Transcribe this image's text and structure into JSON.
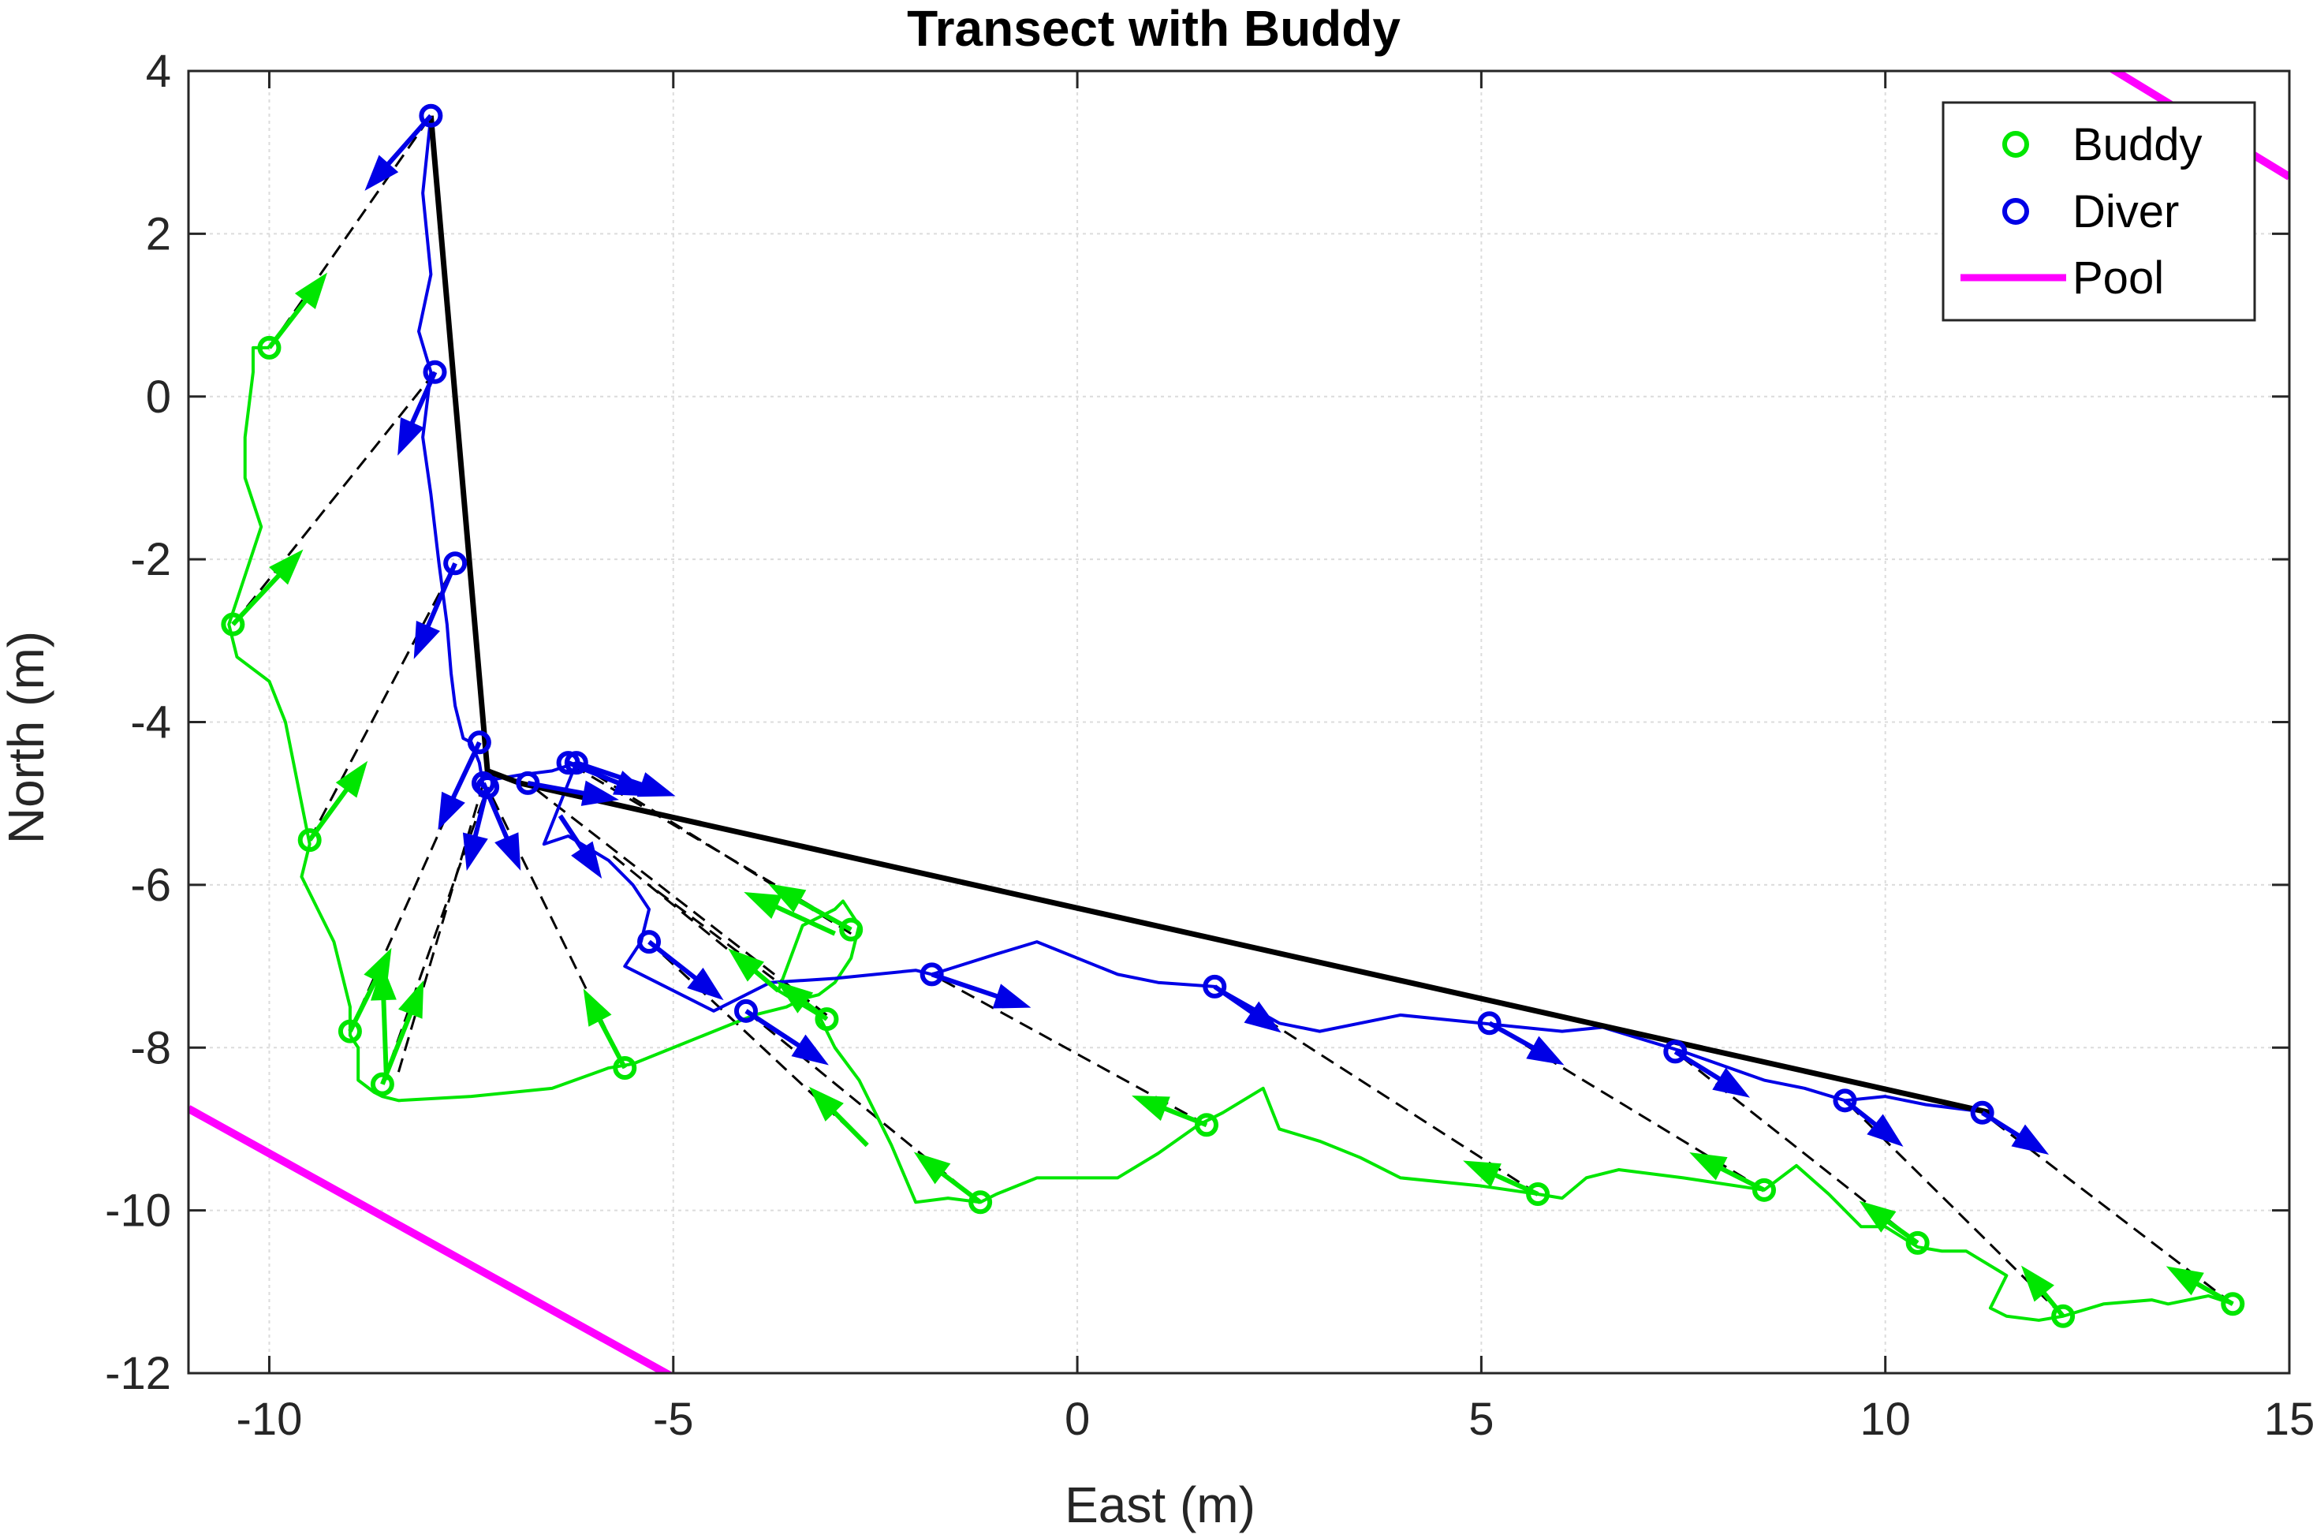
{
  "chart_data": {
    "type": "line",
    "title": "Transect with Buddy",
    "xlabel": "East (m)",
    "ylabel": "North (m)",
    "xlim": [
      -11,
      15
    ],
    "ylim": [
      -12,
      4
    ],
    "xticks": [
      -10,
      -5,
      0,
      5,
      10,
      15
    ],
    "yticks": [
      4,
      2,
      0,
      -2,
      -4,
      -6,
      -8,
      -10,
      -12
    ],
    "xtick_labels": [
      "-10",
      "-5",
      "0",
      "5",
      "10",
      "15"
    ],
    "ytick_labels": [
      "4",
      "2",
      "0",
      "-2",
      "-4",
      "-6",
      "-8",
      "-10",
      "-12"
    ],
    "grid": true,
    "legend_position": "top-right",
    "legend": [
      {
        "name": "Buddy",
        "color": "#00e600",
        "style": "circle-marker"
      },
      {
        "name": "Diver",
        "color": "#0000e6",
        "style": "circle-marker"
      },
      {
        "name": "Pool",
        "color": "#ff00ff",
        "style": "line"
      }
    ],
    "series": [
      {
        "name": "Pool",
        "color": "#ff00ff",
        "segments": [
          [
            [
              -11,
              -8.75
            ],
            [
              -5,
              -12.05
            ]
          ],
          [
            [
              12.6,
              4.15
            ],
            [
              15,
              2.7
            ]
          ]
        ]
      },
      {
        "name": "Buddy",
        "color": "#00e600",
        "x": [
          -10.0,
          -10.2,
          -10.2,
          -10.3,
          -10.3,
          -10.1,
          -10.3,
          -10.5,
          -10.4,
          -10.0,
          -9.8,
          -9.7,
          -9.6,
          -9.5,
          -9.6,
          -9.4,
          -9.2,
          -9.1,
          -9.0,
          -9.0,
          -8.9,
          -8.9,
          -8.7,
          -8.6,
          -8.4,
          -7.5,
          -6.5,
          -5.8,
          -5.5,
          -5.0,
          -4.5,
          -4.0,
          -3.6,
          -3.4,
          -3.2,
          -3.0,
          -2.8,
          -2.7,
          -2.9,
          -3.0,
          -3.4,
          -3.7,
          -3.2,
          -3.0,
          -2.7,
          -2.5,
          -2.3,
          -2.0,
          -1.6,
          -1.2,
          -1.0,
          -0.5,
          0.5,
          1.0,
          1.5,
          1.8,
          2.3,
          2.5,
          3.0,
          3.5,
          4.0,
          5.0,
          5.7,
          6.0,
          6.3,
          6.7,
          7.5,
          8.5,
          8.9,
          9.3,
          9.7,
          10.0,
          10.4,
          10.7,
          11.0,
          11.5,
          11.3,
          11.5,
          11.9,
          12.2,
          12.7,
          13.3,
          13.5,
          14.0,
          14.3
        ],
        "y": [
          0.6,
          0.6,
          0.3,
          -0.5,
          -1.0,
          -1.6,
          -2.2,
          -2.8,
          -3.2,
          -3.5,
          -4.0,
          -4.5,
          -5.0,
          -5.5,
          -5.9,
          -6.3,
          -6.7,
          -7.1,
          -7.5,
          -7.85,
          -8.0,
          -8.4,
          -8.55,
          -8.6,
          -8.65,
          -8.6,
          -8.5,
          -8.25,
          -8.2,
          -8.0,
          -7.8,
          -7.6,
          -7.5,
          -7.4,
          -7.35,
          -7.2,
          -6.9,
          -6.5,
          -6.2,
          -6.3,
          -6.5,
          -7.3,
          -7.6,
          -8.0,
          -8.4,
          -8.8,
          -9.2,
          -9.9,
          -9.85,
          -9.9,
          -9.8,
          -9.6,
          -9.6,
          -9.3,
          -8.95,
          -8.8,
          -8.5,
          -9.0,
          -9.15,
          -9.35,
          -9.6,
          -9.7,
          -9.8,
          -9.85,
          -9.6,
          -9.5,
          -9.6,
          -9.75,
          -9.45,
          -9.8,
          -10.2,
          -10.2,
          -10.45,
          -10.5,
          -10.5,
          -10.8,
          -11.2,
          -11.3,
          -11.35,
          -11.3,
          -11.15,
          -11.1,
          -11.15,
          -11.05,
          -11.15
        ]
      },
      {
        "name": "Diver",
        "color": "#0000e6",
        "x": [
          -8.0,
          -8.1,
          -8.0,
          -8.15,
          -8.0,
          -8.1,
          -8.0,
          -7.9,
          -7.8,
          -7.75,
          -7.7,
          -7.6,
          -7.5,
          -7.4,
          -7.35,
          -7.4,
          -7.3,
          -7.2,
          -6.9,
          -6.5,
          -6.2,
          -6.6,
          -6.3,
          -5.8,
          -5.5,
          -5.3,
          -5.4,
          -5.6,
          -5.2,
          -4.8,
          -4.5,
          -3.8,
          -3.0,
          -2.5,
          -2.0,
          -1.8,
          -1.0,
          -0.5,
          0.5,
          1.0,
          1.7,
          2.5,
          3.0,
          4.0,
          4.5,
          5.0,
          5.5,
          6.0,
          6.5,
          7.0,
          7.5,
          8.5,
          9.0,
          9.5,
          10.0,
          10.5,
          11.3
        ],
        "y": [
          3.45,
          2.5,
          1.5,
          0.8,
          0.3,
          -0.5,
          -1.2,
          -2.05,
          -2.8,
          -3.4,
          -3.8,
          -4.2,
          -4.25,
          -4.5,
          -4.8,
          -4.75,
          -4.6,
          -4.7,
          -4.65,
          -4.6,
          -4.5,
          -5.5,
          -5.4,
          -5.7,
          -6.0,
          -6.3,
          -6.7,
          -7.0,
          -7.2,
          -7.4,
          -7.55,
          -7.2,
          -7.15,
          -7.1,
          -7.05,
          -7.1,
          -6.85,
          -6.7,
          -7.1,
          -7.2,
          -7.25,
          -7.7,
          -7.8,
          -7.6,
          -7.65,
          -7.7,
          -7.75,
          -7.8,
          -7.75,
          -7.9,
          -8.05,
          -8.4,
          -8.5,
          -8.65,
          -8.6,
          -8.7,
          -8.8
        ]
      }
    ],
    "path_line": {
      "color": "#000000",
      "x": [
        -8.0,
        -7.3,
        -6.9,
        11.3
      ],
      "y": [
        3.45,
        -4.6,
        -4.75,
        -8.8
      ]
    },
    "buddy_points": {
      "x": [
        -10.0,
        -10.45,
        -9.5,
        -9.0,
        -8.6,
        -5.6,
        -3.1,
        -2.8,
        -1.2,
        1.6,
        5.7,
        8.5,
        10.4,
        12.2,
        14.3
      ],
      "y": [
        0.6,
        -2.8,
        -5.45,
        -7.8,
        -8.45,
        -8.25,
        -7.65,
        -6.55,
        -9.9,
        -8.95,
        -9.8,
        -9.75,
        -10.4,
        -11.3,
        -11.15
      ]
    },
    "diver_points": {
      "x": [
        -8.0,
        -7.95,
        -7.7,
        -7.4,
        -7.3,
        -7.35,
        -6.8,
        -6.3,
        -6.2,
        -5.3,
        -4.1,
        -1.8,
        1.7,
        5.1,
        7.4,
        9.5,
        11.2
      ],
      "y": [
        3.45,
        0.3,
        -2.05,
        -4.25,
        -4.8,
        -4.75,
        -4.75,
        -4.5,
        -4.5,
        -6.7,
        -7.55,
        -7.1,
        -7.25,
        -7.7,
        -8.05,
        -8.65,
        -8.8
      ]
    },
    "connections": [
      [
        [
          -10.0,
          0.6
        ],
        [
          -8.0,
          3.45
        ]
      ],
      [
        [
          -10.45,
          -2.8
        ],
        [
          -7.95,
          0.3
        ]
      ],
      [
        [
          -9.5,
          -5.45
        ],
        [
          -7.7,
          -2.05
        ]
      ],
      [
        [
          -9.0,
          -7.8
        ],
        [
          -7.4,
          -4.25
        ]
      ],
      [
        [
          -8.6,
          -8.45
        ],
        [
          -7.3,
          -4.8
        ]
      ],
      [
        [
          -8.4,
          -8.3
        ],
        [
          -7.35,
          -4.75
        ]
      ],
      [
        [
          -5.6,
          -8.25
        ],
        [
          -7.3,
          -4.8
        ]
      ],
      [
        [
          -2.8,
          -6.55
        ],
        [
          -6.3,
          -4.5
        ]
      ],
      [
        [
          -2.8,
          -6.6
        ],
        [
          -6.2,
          -4.5
        ]
      ],
      [
        [
          -3.1,
          -7.65
        ],
        [
          -5.3,
          -6.0
        ]
      ],
      [
        [
          -2.6,
          -9.2
        ],
        [
          -5.3,
          -6.7
        ]
      ],
      [
        [
          -1.2,
          -9.9
        ],
        [
          -4.1,
          -7.55
        ]
      ],
      [
        [
          1.6,
          -8.95
        ],
        [
          -1.8,
          -7.1
        ]
      ],
      [
        [
          5.7,
          -9.8
        ],
        [
          1.7,
          -7.25
        ]
      ],
      [
        [
          8.5,
          -9.75
        ],
        [
          5.1,
          -7.7
        ]
      ],
      [
        [
          10.4,
          -10.4
        ],
        [
          7.4,
          -8.05
        ]
      ],
      [
        [
          12.2,
          -11.3
        ],
        [
          9.5,
          -8.65
        ]
      ],
      [
        [
          14.3,
          -11.15
        ],
        [
          11.2,
          -8.8
        ]
      ],
      [
        [
          -3.1,
          -7.6
        ],
        [
          -6.8,
          -4.75
        ]
      ],
      [
        [
          -3.7,
          -7.3
        ],
        [
          -5.8,
          -5.6
        ]
      ]
    ],
    "buddy_arrows": [
      [
        [
          -10.0,
          0.6
        ],
        [
          -9.3,
          1.5
        ]
      ],
      [
        [
          -10.45,
          -2.8
        ],
        [
          -9.6,
          -1.9
        ]
      ],
      [
        [
          -9.5,
          -5.45
        ],
        [
          -8.8,
          -4.5
        ]
      ],
      [
        [
          -9.0,
          -7.8
        ],
        [
          -8.5,
          -6.8
        ]
      ],
      [
        [
          -8.6,
          -8.45
        ],
        [
          -8.1,
          -7.2
        ]
      ],
      [
        [
          -8.55,
          -8.4
        ],
        [
          -8.6,
          -7.0
        ]
      ],
      [
        [
          -5.6,
          -8.25
        ],
        [
          -6.1,
          -7.3
        ]
      ],
      [
        [
          -2.8,
          -6.55
        ],
        [
          -3.8,
          -6.0
        ]
      ],
      [
        [
          -3.0,
          -6.6
        ],
        [
          -4.1,
          -6.1
        ]
      ],
      [
        [
          -3.1,
          -7.65
        ],
        [
          -3.7,
          -7.2
        ]
      ],
      [
        [
          -3.7,
          -7.3
        ],
        [
          -4.3,
          -6.8
        ]
      ],
      [
        [
          -2.6,
          -9.2
        ],
        [
          -3.3,
          -8.5
        ]
      ],
      [
        [
          -1.2,
          -9.9
        ],
        [
          -2.0,
          -9.3
        ]
      ],
      [
        [
          1.6,
          -8.95
        ],
        [
          0.7,
          -8.6
        ]
      ],
      [
        [
          5.7,
          -9.8
        ],
        [
          4.8,
          -9.4
        ]
      ],
      [
        [
          8.5,
          -9.75
        ],
        [
          7.6,
          -9.3
        ]
      ],
      [
        [
          10.4,
          -10.4
        ],
        [
          9.7,
          -9.9
        ]
      ],
      [
        [
          12.2,
          -11.3
        ],
        [
          11.7,
          -10.7
        ]
      ],
      [
        [
          14.3,
          -11.15
        ],
        [
          13.5,
          -10.7
        ]
      ]
    ],
    "diver_arrows": [
      [
        [
          -8.0,
          3.45
        ],
        [
          -8.8,
          2.55
        ]
      ],
      [
        [
          -7.95,
          0.3
        ],
        [
          -8.4,
          -0.7
        ]
      ],
      [
        [
          -7.7,
          -2.05
        ],
        [
          -8.2,
          -3.2
        ]
      ],
      [
        [
          -7.4,
          -4.25
        ],
        [
          -7.9,
          -5.3
        ]
      ],
      [
        [
          -7.3,
          -4.8
        ],
        [
          -7.55,
          -5.8
        ]
      ],
      [
        [
          -7.35,
          -4.75
        ],
        [
          -6.9,
          -5.8
        ]
      ],
      [
        [
          -6.8,
          -4.75
        ],
        [
          -5.7,
          -4.95
        ]
      ],
      [
        [
          -6.3,
          -4.5
        ],
        [
          -5.3,
          -4.9
        ]
      ],
      [
        [
          -6.2,
          -4.5
        ],
        [
          -5.0,
          -4.9
        ]
      ],
      [
        [
          -6.4,
          -5.15
        ],
        [
          -5.9,
          -5.9
        ]
      ],
      [
        [
          -5.3,
          -6.7
        ],
        [
          -4.4,
          -7.4
        ]
      ],
      [
        [
          -4.1,
          -7.55
        ],
        [
          -3.1,
          -8.2
        ]
      ],
      [
        [
          -1.8,
          -7.1
        ],
        [
          -0.6,
          -7.5
        ]
      ],
      [
        [
          1.7,
          -7.25
        ],
        [
          2.5,
          -7.8
        ]
      ],
      [
        [
          5.1,
          -7.7
        ],
        [
          6.0,
          -8.2
        ]
      ],
      [
        [
          7.4,
          -8.05
        ],
        [
          8.3,
          -8.6
        ]
      ],
      [
        [
          9.5,
          -8.65
        ],
        [
          10.2,
          -9.2
        ]
      ],
      [
        [
          11.2,
          -8.8
        ],
        [
          12.0,
          -9.3
        ]
      ]
    ]
  }
}
